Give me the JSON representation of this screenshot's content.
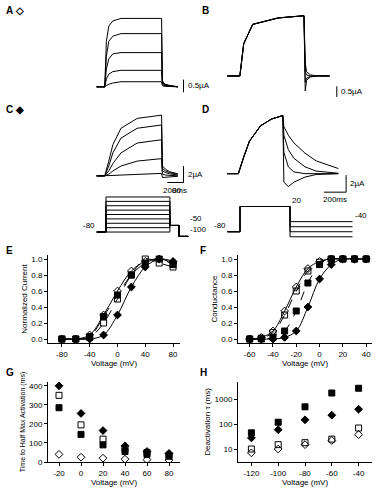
{
  "chart_data": [
    {
      "panel": "A ◇",
      "type": "line",
      "tick_labels": false,
      "color": "#000000",
      "line_style": "solid",
      "x": [
        0,
        90,
        100,
        120,
        150,
        200,
        300,
        800,
        810,
        830,
        900,
        1000
      ],
      "series": [
        {
          "values": [
            0,
            0,
            0,
            0.05,
            0.1,
            0.15,
            0.2,
            0.2,
            0.05,
            0.02,
            0,
            0
          ]
        },
        {
          "values": [
            0,
            0,
            0,
            0.3,
            0.5,
            0.6,
            0.65,
            0.65,
            0.1,
            0.05,
            0.02,
            0
          ]
        },
        {
          "values": [
            0,
            0,
            0,
            0.7,
            1.1,
            1.3,
            1.35,
            1.35,
            0.15,
            0.08,
            0.03,
            0
          ]
        },
        {
          "values": [
            0,
            0,
            0,
            1.2,
            1.8,
            2,
            2.1,
            2.1,
            0.2,
            0.1,
            0.04,
            0
          ]
        },
        {
          "values": [
            0,
            0,
            0,
            1.8,
            2.4,
            2.6,
            2.7,
            2.7,
            0.25,
            0.12,
            0.05,
            0
          ]
        }
      ],
      "scale_bar": {
        "y": 0.5,
        "y_label": "0.5µA"
      }
    },
    {
      "panel": "B",
      "type": "line",
      "tick_labels": false,
      "color": "#000000",
      "line_style": "solid",
      "x": [
        0,
        90,
        100,
        130,
        200,
        400,
        600,
        610,
        620,
        650,
        700,
        800
      ],
      "series": [
        {
          "values": [
            0,
            0,
            0,
            1.5,
            2.4,
            2.7,
            2.8,
            0.6,
            0.2,
            0.05,
            0,
            0
          ]
        },
        {
          "values": [
            0,
            0,
            0,
            1.5,
            2.4,
            2.7,
            2.8,
            0.2,
            0.05,
            0,
            0,
            0
          ]
        },
        {
          "values": [
            0,
            0,
            0,
            1.5,
            2.4,
            2.7,
            2.8,
            -0.3,
            -0.1,
            -0.02,
            0,
            0
          ]
        },
        {
          "values": [
            0,
            0,
            0,
            1.5,
            2.4,
            2.7,
            2.8,
            -0.7,
            -0.2,
            -0.05,
            0,
            0
          ]
        }
      ],
      "scale_bar": {
        "y": 0.5,
        "y_label": "0.5µA"
      }
    },
    {
      "panel": "C ◆",
      "type": "line",
      "tick_labels": false,
      "color": "#000000",
      "line_style": "solid",
      "x": [
        0,
        90,
        100,
        150,
        200,
        300,
        500,
        800,
        810,
        850,
        900,
        1000
      ],
      "series": [
        {
          "values": [
            0,
            0,
            0,
            0,
            0.05,
            0.1,
            0.2,
            0.3,
            -0.2,
            -0.15,
            -0.1,
            -0.05
          ]
        },
        {
          "values": [
            0,
            0,
            0,
            0.2,
            0.6,
            1.2,
            1.8,
            2.1,
            0.2,
            0.1,
            0.05,
            0
          ]
        },
        {
          "values": [
            0,
            0,
            0,
            0.6,
            1.5,
            2.8,
            4,
            4.4,
            0.6,
            0.4,
            0.25,
            0.1
          ]
        },
        {
          "values": [
            0,
            0,
            0,
            1.2,
            2.8,
            4.6,
            5.8,
            6.2,
            0.9,
            0.6,
            0.4,
            0.2
          ]
        },
        {
          "values": [
            0,
            0,
            0,
            1.8,
            3.8,
            5.8,
            7,
            7.4,
            1.2,
            0.8,
            0.5,
            0.25
          ]
        }
      ],
      "scale_bar": {
        "x": 200,
        "x_label": "200ms",
        "y": 2,
        "y_label": "2µA"
      }
    },
    {
      "type": "line",
      "tick_labels": false,
      "color": "#000000",
      "line_style": "solid",
      "x": [
        0,
        100,
        100,
        800,
        800,
        900,
        900,
        1000
      ],
      "series": [
        {
          "values": [
            -80,
            -80,
            -80,
            -80,
            -50,
            -50,
            -100,
            -100
          ]
        },
        {
          "values": [
            -80,
            -80,
            -60,
            -60,
            -50,
            -50,
            -100,
            -100
          ]
        },
        {
          "values": [
            -80,
            -80,
            -40,
            -40,
            -50,
            -50,
            -100,
            -100
          ]
        },
        {
          "values": [
            -80,
            -80,
            -20,
            -20,
            -50,
            -50,
            -100,
            -100
          ]
        },
        {
          "values": [
            -80,
            -80,
            0,
            0,
            -50,
            -50,
            -100,
            -100
          ]
        },
        {
          "values": [
            -80,
            -80,
            20,
            20,
            -50,
            -50,
            -100,
            -100
          ]
        },
        {
          "values": [
            -80,
            -80,
            40,
            40,
            -50,
            -50,
            -100,
            -100
          ]
        },
        {
          "values": [
            -80,
            -80,
            60,
            60,
            -50,
            -50,
            -100,
            -100
          ]
        },
        {
          "values": [
            -80,
            -80,
            80,
            80,
            -50,
            -50,
            -100,
            -100
          ]
        }
      ],
      "annotations": [
        {
          "text": "80",
          "x": 800,
          "y": 80
        },
        {
          "text": "-50",
          "x": 1000,
          "y": -50
        },
        {
          "text": "-100",
          "x": 1000,
          "y": -100
        },
        {
          "text": "-80",
          "x": 0,
          "y": -80
        }
      ]
    },
    {
      "panel": "D",
      "type": "line",
      "tick_labels": false,
      "color": "#000000",
      "line_style": "solid",
      "x": [
        0,
        90,
        100,
        150,
        200,
        300,
        400,
        500,
        510,
        550,
        600,
        700,
        800,
        1000
      ],
      "series": [
        {
          "values": [
            0,
            0,
            0,
            2,
            3.8,
            5.6,
            6.4,
            6.8,
            5.5,
            4.5,
            3.6,
            2.4,
            1.5,
            0.6
          ]
        },
        {
          "values": [
            0,
            0,
            0,
            2,
            3.8,
            5.6,
            6.4,
            6.8,
            4.5,
            2.8,
            1.8,
            0.8,
            0.3,
            0.05
          ]
        },
        {
          "values": [
            0,
            0,
            0,
            2,
            3.8,
            5.6,
            6.4,
            6.8,
            2.5,
            0.8,
            0.2,
            0,
            0,
            0
          ]
        },
        {
          "values": [
            0,
            0,
            0,
            2,
            3.8,
            5.6,
            6.4,
            6.8,
            -1,
            -1.5,
            -1,
            -0.4,
            -0.1,
            0
          ]
        }
      ],
      "scale_bar": {
        "x": 200,
        "x_label": "200ms",
        "y": 2,
        "y_label": "2µA"
      }
    },
    {
      "type": "line",
      "tick_labels": false,
      "color": "#000000",
      "line_style": "solid",
      "x": [
        0,
        100,
        100,
        500,
        500,
        1000
      ],
      "series": [
        {
          "values": [
            -80,
            -80,
            20,
            20,
            -40,
            -40
          ]
        },
        {
          "values": [
            -80,
            -80,
            20,
            20,
            -60,
            -60
          ]
        },
        {
          "values": [
            -80,
            -80,
            20,
            20,
            -80,
            -80
          ]
        },
        {
          "values": [
            -80,
            -80,
            20,
            20,
            -100,
            -100
          ]
        }
      ],
      "annotations": [
        {
          "text": "-80",
          "x": 0,
          "y": -80
        },
        {
          "text": "20",
          "x": 500,
          "y": 20
        },
        {
          "text": "-40",
          "x": 1000,
          "y": -40
        }
      ]
    },
    {
      "panel": "E",
      "type": "scatter",
      "color": "#000000",
      "grid": false,
      "x_label": "Voltage (mV)",
      "y_label": "Normalized Current",
      "xlim": [
        -100,
        90
      ],
      "xticks": [
        -80,
        -40,
        0,
        40,
        80
      ],
      "ylim": [
        -0.05,
        1.05
      ],
      "yticks": [
        {
          "value": 0,
          "label": "0.0"
        },
        0.2,
        0.4,
        0.6,
        0.8,
        {
          "value": 1,
          "label": "1.0"
        }
      ],
      "x": [
        -80,
        -60,
        -40,
        -20,
        0,
        20,
        40,
        60,
        80
      ],
      "series": [
        {
          "marker": "diamond-open",
          "line_style": "solid",
          "values": [
            0,
            0,
            0.05,
            0.3,
            0.6,
            0.85,
            0.97,
            1,
            0.95
          ]
        },
        {
          "marker": "diamond",
          "line_style": "solid",
          "values": [
            0,
            0,
            0,
            0.05,
            0.3,
            0.65,
            0.9,
            1,
            0.97
          ]
        },
        {
          "marker": "square-open",
          "line_style": "dashed",
          "values": [
            0,
            0,
            0.02,
            0.2,
            0.5,
            0.8,
            1,
            0.95,
            0.9
          ]
        },
        {
          "marker": "square",
          "line_style": "dashed",
          "values": [
            0,
            0,
            0.03,
            0.28,
            0.55,
            0.8,
            0.95,
            1,
            0.93
          ]
        }
      ]
    },
    {
      "panel": "F",
      "type": "scatter",
      "color": "#000000",
      "grid": false,
      "x_label": "Voltage (mV)",
      "y_label": "Conductance",
      "xlim": [
        -70,
        45
      ],
      "xticks": [
        -60,
        -40,
        -20,
        0,
        20,
        40
      ],
      "ylim": [
        -0.05,
        1.05
      ],
      "yticks": [
        {
          "value": 0,
          "label": "0.0"
        },
        0.2,
        0.4,
        0.6,
        0.8,
        {
          "value": 1,
          "label": "1.0"
        }
      ],
      "x": [
        -60,
        -50,
        -40,
        -30,
        -20,
        -10,
        0,
        10,
        20,
        30,
        40
      ],
      "series": [
        {
          "marker": "diamond-open",
          "line_style": "solid",
          "values": [
            0,
            0.02,
            0.1,
            0.35,
            0.65,
            0.88,
            0.97,
            1,
            1,
            1,
            1
          ]
        },
        {
          "marker": "diamond",
          "line_style": "solid",
          "values": [
            0,
            0,
            0,
            0.02,
            0.1,
            0.4,
            0.75,
            0.93,
            1,
            1,
            1
          ]
        },
        {
          "marker": "square-open",
          "line_style": "dashed",
          "values": [
            0,
            0.01,
            0.08,
            0.3,
            0.6,
            0.85,
            0.96,
            1,
            1,
            1,
            1
          ]
        },
        {
          "marker": "square",
          "line_style": "dashed",
          "values": [
            0,
            0,
            0.02,
            0.1,
            0.35,
            0.7,
            0.93,
            1,
            1,
            1,
            1
          ]
        }
      ]
    },
    {
      "panel": "G",
      "type": "scatter",
      "color": "#000000",
      "grid": false,
      "x_label": "Voltage (mV)",
      "y_label": "Time to Half Max Activation (ms)",
      "xlim": [
        -30,
        90
      ],
      "xticks": [
        -20,
        0,
        20,
        40,
        60,
        80
      ],
      "ylim": [
        0,
        420
      ],
      "yticks": [
        0,
        100,
        200,
        300,
        400
      ],
      "x": [
        -20,
        0,
        20,
        40,
        60,
        80
      ],
      "series": [
        {
          "marker": "diamond-open",
          "values": [
            40,
            25,
            20,
            15,
            12,
            10
          ]
        },
        {
          "marker": "diamond",
          "values": [
            400,
            255,
            165,
            85,
            55,
            45
          ]
        },
        {
          "marker": "square-open",
          "values": [
            350,
            195,
            120,
            70,
            50,
            35
          ]
        },
        {
          "marker": "square",
          "values": [
            285,
            145,
            90,
            55,
            40,
            30
          ]
        }
      ]
    },
    {
      "panel": "H",
      "type": "scatter",
      "color": "#000000",
      "grid": false,
      "log": "y",
      "x_label": "Voltage (mV)",
      "y_label": "Deactivation τ (ms)",
      "xlim": [
        -130,
        -30
      ],
      "xticks": [
        -120,
        -100,
        -80,
        -60,
        -40
      ],
      "ylim": [
        3,
        5000
      ],
      "yticks": [
        10,
        100,
        1000
      ],
      "x": [
        -120,
        -100,
        -80,
        -60,
        -40
      ],
      "series": [
        {
          "marker": "diamond-open",
          "values": [
            7,
            10,
            15,
            22,
            38
          ]
        },
        {
          "marker": "diamond",
          "values": [
            28,
            60,
            150,
            230,
            400
          ]
        },
        {
          "marker": "square-open",
          "values": [
            10,
            15,
            18,
            25,
            70
          ]
        },
        {
          "marker": "square",
          "values": [
            45,
            120,
            500,
            1800,
            2800
          ]
        }
      ]
    }
  ]
}
